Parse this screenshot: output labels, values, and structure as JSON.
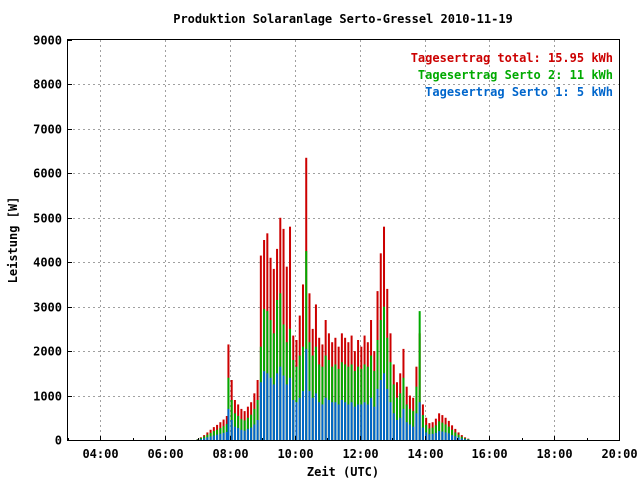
{
  "chart_data": {
    "type": "bar",
    "title": "Produktion Solaranlage Serto-Gressel 2010-11-19",
    "xlabel": "Zeit (UTC)",
    "ylabel": "Leistung [W]",
    "x_unit": "hour UTC",
    "xlim": [
      3,
      20
    ],
    "ylim": [
      0,
      9000
    ],
    "x_ticks": [
      4,
      6,
      8,
      10,
      12,
      14,
      16,
      18,
      20
    ],
    "x_tick_labels": [
      "04:00",
      "06:00",
      "08:00",
      "10:00",
      "12:00",
      "14:00",
      "16:00",
      "18:00",
      "20:00"
    ],
    "y_ticks": [
      0,
      1000,
      2000,
      3000,
      4000,
      5000,
      6000,
      7000,
      8000,
      9000
    ],
    "y_tick_labels": [
      "0",
      "1000",
      "2000",
      "3000",
      "4000",
      "5000",
      "6000",
      "7000",
      "8000",
      "9000"
    ],
    "grid": true,
    "legend_position": "top-right",
    "legend": [
      {
        "text": "Tagesertrag total: 15.95 kWh",
        "color": "#cc0000"
      },
      {
        "text": "Tagesertrag Serto 2: 11 kWh",
        "color": "#00aa00"
      },
      {
        "text": "Tagesertrag Serto 1: 5 kWh",
        "color": "#0066cc"
      }
    ],
    "colors": {
      "total": "#cc0000",
      "serto2": "#00aa00",
      "serto1": "#0066cc"
    },
    "series": [
      {
        "name": "Tagesertrag total: 15.95 kWh",
        "key": "total",
        "points": [
          [
            7.0,
            20
          ],
          [
            7.1,
            60
          ],
          [
            7.2,
            110
          ],
          [
            7.3,
            170
          ],
          [
            7.4,
            230
          ],
          [
            7.5,
            290
          ],
          [
            7.6,
            340
          ],
          [
            7.7,
            400
          ],
          [
            7.8,
            460
          ],
          [
            7.9,
            540
          ],
          [
            7.95,
            2150
          ],
          [
            8.05,
            1350
          ],
          [
            8.15,
            900
          ],
          [
            8.25,
            800
          ],
          [
            8.35,
            700
          ],
          [
            8.45,
            650
          ],
          [
            8.55,
            750
          ],
          [
            8.65,
            850
          ],
          [
            8.75,
            1050
          ],
          [
            8.85,
            1350
          ],
          [
            8.95,
            4150
          ],
          [
            9.05,
            4500
          ],
          [
            9.15,
            4650
          ],
          [
            9.25,
            4100
          ],
          [
            9.35,
            3850
          ],
          [
            9.45,
            4300
          ],
          [
            9.55,
            5000
          ],
          [
            9.65,
            4750
          ],
          [
            9.75,
            3900
          ],
          [
            9.85,
            4800
          ],
          [
            9.95,
            2350
          ],
          [
            10.05,
            2250
          ],
          [
            10.15,
            2800
          ],
          [
            10.25,
            3500
          ],
          [
            10.35,
            6350
          ],
          [
            10.45,
            3300
          ],
          [
            10.55,
            2500
          ],
          [
            10.65,
            3050
          ],
          [
            10.75,
            2300
          ],
          [
            10.85,
            2150
          ],
          [
            10.95,
            2700
          ],
          [
            11.05,
            2400
          ],
          [
            11.15,
            2200
          ],
          [
            11.25,
            2300
          ],
          [
            11.35,
            2100
          ],
          [
            11.45,
            2400
          ],
          [
            11.55,
            2300
          ],
          [
            11.65,
            2200
          ],
          [
            11.75,
            2350
          ],
          [
            11.85,
            2000
          ],
          [
            11.95,
            2250
          ],
          [
            12.05,
            2100
          ],
          [
            12.15,
            2350
          ],
          [
            12.25,
            2200
          ],
          [
            12.35,
            2700
          ],
          [
            12.45,
            2000
          ],
          [
            12.55,
            3350
          ],
          [
            12.65,
            4200
          ],
          [
            12.75,
            4800
          ],
          [
            12.85,
            3400
          ],
          [
            12.95,
            2400
          ],
          [
            13.05,
            1700
          ],
          [
            13.15,
            1300
          ],
          [
            13.25,
            1500
          ],
          [
            13.35,
            2050
          ],
          [
            13.45,
            1200
          ],
          [
            13.55,
            1000
          ],
          [
            13.65,
            950
          ],
          [
            13.75,
            1650
          ],
          [
            13.85,
            2400
          ],
          [
            13.95,
            800
          ],
          [
            14.05,
            500
          ],
          [
            14.15,
            380
          ],
          [
            14.25,
            400
          ],
          [
            14.35,
            480
          ],
          [
            14.45,
            600
          ],
          [
            14.55,
            560
          ],
          [
            14.65,
            500
          ],
          [
            14.75,
            430
          ],
          [
            14.85,
            330
          ],
          [
            14.95,
            250
          ],
          [
            15.05,
            170
          ],
          [
            15.15,
            110
          ],
          [
            15.25,
            60
          ],
          [
            15.35,
            30
          ]
        ]
      },
      {
        "name": "Tagesertrag Serto 2: 11 kWh",
        "key": "serto2",
        "points": [
          [
            7.0,
            15
          ],
          [
            7.1,
            45
          ],
          [
            7.2,
            80
          ],
          [
            7.3,
            120
          ],
          [
            7.4,
            160
          ],
          [
            7.5,
            200
          ],
          [
            7.6,
            230
          ],
          [
            7.7,
            270
          ],
          [
            7.8,
            310
          ],
          [
            7.9,
            360
          ],
          [
            7.95,
            1400
          ],
          [
            8.05,
            900
          ],
          [
            8.15,
            600
          ],
          [
            8.25,
            540
          ],
          [
            8.35,
            470
          ],
          [
            8.45,
            440
          ],
          [
            8.55,
            500
          ],
          [
            8.65,
            570
          ],
          [
            8.75,
            700
          ],
          [
            8.85,
            900
          ],
          [
            8.95,
            2100
          ],
          [
            9.05,
            2950
          ],
          [
            9.15,
            2900
          ],
          [
            9.25,
            2700
          ],
          [
            9.35,
            2400
          ],
          [
            9.45,
            3150
          ],
          [
            9.55,
            3300
          ],
          [
            9.65,
            2600
          ],
          [
            9.75,
            2200
          ],
          [
            9.85,
            2500
          ],
          [
            9.95,
            1800
          ],
          [
            10.05,
            1650
          ],
          [
            10.15,
            1900
          ],
          [
            10.25,
            2100
          ],
          [
            10.35,
            4250
          ],
          [
            10.45,
            2200
          ],
          [
            10.55,
            1900
          ],
          [
            10.65,
            2100
          ],
          [
            10.75,
            1700
          ],
          [
            10.85,
            1650
          ],
          [
            10.95,
            1900
          ],
          [
            11.05,
            1800
          ],
          [
            11.15,
            1650
          ],
          [
            11.25,
            1700
          ],
          [
            11.35,
            1600
          ],
          [
            11.45,
            1750
          ],
          [
            11.55,
            1700
          ],
          [
            11.65,
            1650
          ],
          [
            11.75,
            1700
          ],
          [
            11.85,
            1550
          ],
          [
            11.95,
            1650
          ],
          [
            12.05,
            1600
          ],
          [
            12.15,
            1700
          ],
          [
            12.25,
            1650
          ],
          [
            12.35,
            1900
          ],
          [
            12.45,
            1550
          ],
          [
            12.55,
            2250
          ],
          [
            12.65,
            2700
          ],
          [
            12.75,
            3000
          ],
          [
            12.85,
            2300
          ],
          [
            12.95,
            1750
          ],
          [
            13.05,
            1250
          ],
          [
            13.15,
            950
          ],
          [
            13.25,
            1050
          ],
          [
            13.35,
            1400
          ],
          [
            13.45,
            800
          ],
          [
            13.55,
            700
          ],
          [
            13.65,
            650
          ],
          [
            13.75,
            1200
          ],
          [
            13.85,
            2900
          ],
          [
            13.95,
            560
          ],
          [
            14.05,
            340
          ],
          [
            14.15,
            260
          ],
          [
            14.25,
            280
          ],
          [
            14.35,
            330
          ],
          [
            14.45,
            420
          ],
          [
            14.55,
            390
          ],
          [
            14.65,
            350
          ],
          [
            14.75,
            300
          ],
          [
            14.85,
            230
          ],
          [
            14.95,
            170
          ],
          [
            15.05,
            120
          ],
          [
            15.15,
            75
          ],
          [
            15.25,
            40
          ],
          [
            15.35,
            20
          ]
        ]
      },
      {
        "name": "Tagesertrag Serto 1: 5 kWh",
        "key": "serto1",
        "points": [
          [
            7.0,
            5
          ],
          [
            7.1,
            20
          ],
          [
            7.2,
            40
          ],
          [
            7.3,
            60
          ],
          [
            7.4,
            80
          ],
          [
            7.5,
            100
          ],
          [
            7.6,
            120
          ],
          [
            7.7,
            140
          ],
          [
            7.8,
            160
          ],
          [
            7.9,
            180
          ],
          [
            7.95,
            700
          ],
          [
            8.05,
            450
          ],
          [
            8.15,
            300
          ],
          [
            8.25,
            270
          ],
          [
            8.35,
            230
          ],
          [
            8.45,
            210
          ],
          [
            8.55,
            250
          ],
          [
            8.65,
            280
          ],
          [
            8.75,
            350
          ],
          [
            8.85,
            450
          ],
          [
            8.95,
            1300
          ],
          [
            9.05,
            1550
          ],
          [
            9.15,
            1500
          ],
          [
            9.25,
            1400
          ],
          [
            9.35,
            1250
          ],
          [
            9.45,
            1500
          ],
          [
            9.55,
            1650
          ],
          [
            9.65,
            1450
          ],
          [
            9.75,
            1250
          ],
          [
            9.85,
            1400
          ],
          [
            9.95,
            900
          ],
          [
            10.05,
            850
          ],
          [
            10.15,
            950
          ],
          [
            10.25,
            1100
          ],
          [
            10.35,
            2050
          ],
          [
            10.45,
            1100
          ],
          [
            10.55,
            950
          ],
          [
            10.65,
            1050
          ],
          [
            10.75,
            850
          ],
          [
            10.85,
            800
          ],
          [
            10.95,
            950
          ],
          [
            11.05,
            900
          ],
          [
            11.15,
            850
          ],
          [
            11.25,
            850
          ],
          [
            11.35,
            800
          ],
          [
            11.45,
            900
          ],
          [
            11.55,
            850
          ],
          [
            11.65,
            800
          ],
          [
            11.75,
            850
          ],
          [
            11.85,
            750
          ],
          [
            11.95,
            800
          ],
          [
            12.05,
            800
          ],
          [
            12.15,
            850
          ],
          [
            12.25,
            800
          ],
          [
            12.35,
            950
          ],
          [
            12.45,
            750
          ],
          [
            12.55,
            1150
          ],
          [
            12.65,
            1350
          ],
          [
            12.75,
            1500
          ],
          [
            12.85,
            1150
          ],
          [
            12.95,
            850
          ],
          [
            13.05,
            600
          ],
          [
            13.15,
            450
          ],
          [
            13.25,
            500
          ],
          [
            13.35,
            700
          ],
          [
            13.45,
            400
          ],
          [
            13.55,
            350
          ],
          [
            13.65,
            300
          ],
          [
            13.75,
            600
          ],
          [
            13.85,
            850
          ],
          [
            13.95,
            280
          ],
          [
            14.05,
            170
          ],
          [
            14.15,
            130
          ],
          [
            14.25,
            140
          ],
          [
            14.35,
            160
          ],
          [
            14.45,
            200
          ],
          [
            14.55,
            190
          ],
          [
            14.65,
            170
          ],
          [
            14.75,
            150
          ],
          [
            14.85,
            110
          ],
          [
            14.95,
            85
          ],
          [
            15.05,
            60
          ],
          [
            15.15,
            35
          ],
          [
            15.25,
            20
          ],
          [
            15.35,
            10
          ]
        ]
      }
    ]
  }
}
